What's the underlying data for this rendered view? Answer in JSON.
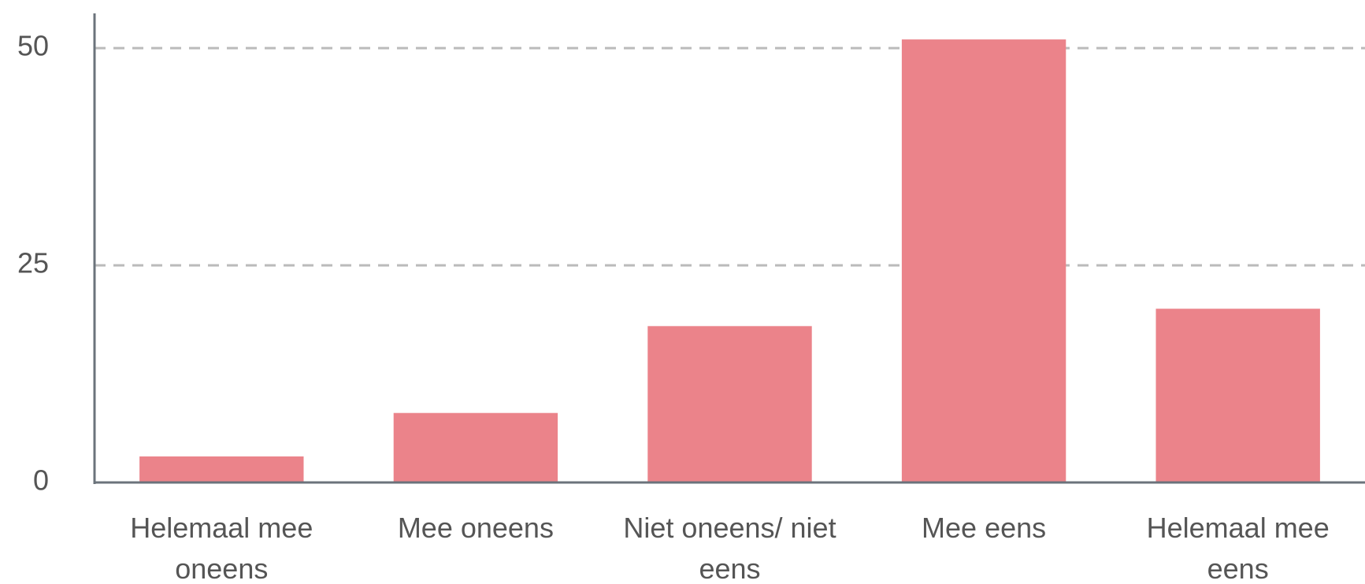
{
  "chart_data": {
    "type": "bar",
    "categories": [
      "Helemaal mee oneens",
      "Mee oneens",
      "Niet oneens/ niet eens",
      "Mee eens",
      "Helemaal mee eens"
    ],
    "values": [
      3,
      8,
      18,
      51,
      20
    ],
    "color": "#eb838a",
    "ylim": [
      0,
      54
    ],
    "yticks": [
      0,
      25,
      50
    ],
    "grid": true
  }
}
